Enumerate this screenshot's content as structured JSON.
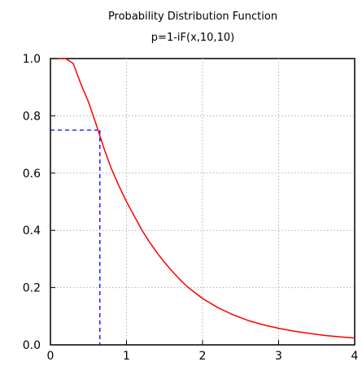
{
  "chart_data": {
    "type": "line",
    "title": "Probability Distribution Function",
    "subtitle": "p=1-iF(x,10,10)",
    "xlim": [
      0,
      4
    ],
    "ylim": [
      0,
      1
    ],
    "x_ticks": [
      "0",
      "1",
      "2",
      "3",
      "4"
    ],
    "y_ticks": [
      "0.0",
      "0.2",
      "0.4",
      "0.6",
      "0.8",
      "1.0"
    ],
    "grid": true,
    "series": [
      {
        "color": "#ff0000",
        "x": [
          0.1,
          0.2,
          0.3,
          0.4,
          0.5,
          0.6,
          0.7,
          0.8,
          0.9,
          1.0,
          1.1,
          1.2,
          1.3,
          1.4,
          1.5,
          1.6,
          1.7,
          1.8,
          1.9,
          2.0,
          2.2,
          2.4,
          2.6,
          2.8,
          3.0,
          3.2,
          3.4,
          3.6,
          3.8,
          4.0
        ],
        "y": [
          1.0,
          1.0,
          0.983,
          0.911,
          0.848,
          0.771,
          0.689,
          0.616,
          0.555,
          0.5,
          0.451,
          0.402,
          0.36,
          0.322,
          0.288,
          0.257,
          0.229,
          0.203,
          0.182,
          0.162,
          0.13,
          0.105,
          0.085,
          0.07,
          0.058,
          0.048,
          0.04,
          0.033,
          0.028,
          0.024
        ]
      }
    ],
    "reference": {
      "x": 0.65,
      "y": 0.75,
      "color": "#0000ff"
    }
  }
}
